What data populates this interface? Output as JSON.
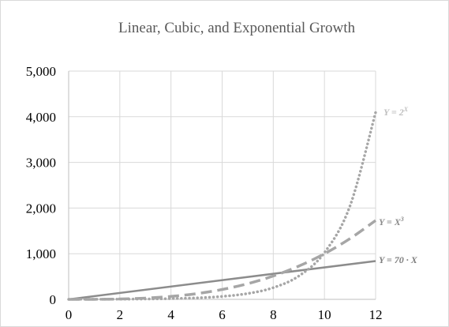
{
  "chart_data": {
    "type": "line",
    "title": "Linear, Cubic, and Exponential Growth",
    "xlabel": "",
    "ylabel": "",
    "xlim": [
      0,
      12
    ],
    "ylim": [
      0,
      5000
    ],
    "x_ticks": [
      0,
      2,
      4,
      6,
      8,
      10,
      12
    ],
    "y_ticks": [
      0,
      1000,
      2000,
      3000,
      4000,
      5000
    ],
    "x_tick_labels": [
      "0",
      "2",
      "4",
      "6",
      "8",
      "10",
      "12"
    ],
    "y_tick_labels": [
      "0",
      "1,000",
      "2,000",
      "3,000",
      "4,000",
      "5,000"
    ],
    "grid": true,
    "legend": "none (labels at line ends)",
    "series": [
      {
        "name": "Y = 2^X",
        "label_text": "Y = 2",
        "label_sup": "X",
        "style": "dotted",
        "color": "#a6a6a6",
        "label_color": "#bfbfbf",
        "x": [
          0,
          1,
          2,
          3,
          4,
          5,
          6,
          7,
          8,
          9,
          10,
          11,
          12
        ],
        "values": [
          1,
          2,
          4,
          8,
          16,
          32,
          64,
          128,
          256,
          512,
          1024,
          2048,
          4096
        ]
      },
      {
        "name": "Y = X^3",
        "label_text": "Y = X",
        "label_sup": "3",
        "style": "dashed",
        "color": "#a6a6a6",
        "label_color": "#8c8c8c",
        "x": [
          0,
          1,
          2,
          3,
          4,
          5,
          6,
          7,
          8,
          9,
          10,
          11,
          12
        ],
        "values": [
          0,
          1,
          8,
          27,
          64,
          125,
          216,
          343,
          512,
          729,
          1000,
          1331,
          1728
        ]
      },
      {
        "name": "Y = 70 · X",
        "label_text": "Y = 70 · X",
        "label_sup": "",
        "style": "solid",
        "color": "#8c8c8c",
        "label_color": "#7f7f7f",
        "x": [
          0,
          12
        ],
        "values": [
          0,
          840
        ]
      }
    ]
  }
}
